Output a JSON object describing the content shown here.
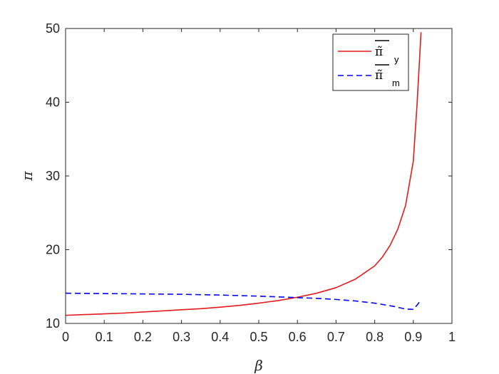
{
  "chart_data": {
    "type": "line",
    "xlabel": "β",
    "ylabel": "π",
    "xlim": [
      0,
      1
    ],
    "ylim": [
      10,
      50
    ],
    "xticks": [
      "0",
      "0.1",
      "0.2",
      "0.3",
      "0.4",
      "0.5",
      "0.6",
      "0.7",
      "0.8",
      "0.9",
      "1"
    ],
    "yticks": [
      "10",
      "20",
      "30",
      "40",
      "50"
    ],
    "grid": false,
    "legend_position": "top-right",
    "series": [
      {
        "name": "π̃",
        "legend_symbol": "π̃",
        "legend_sub": "y",
        "color": "#e41a1c",
        "style": "solid",
        "x": [
          0,
          0.05,
          0.1,
          0.15,
          0.2,
          0.25,
          0.3,
          0.35,
          0.4,
          0.45,
          0.5,
          0.55,
          0.6,
          0.65,
          0.7,
          0.75,
          0.8,
          0.82,
          0.84,
          0.86,
          0.88,
          0.9,
          0.91,
          0.92
        ],
        "y": [
          11.1,
          11.2,
          11.3,
          11.4,
          11.55,
          11.7,
          11.85,
          12.0,
          12.2,
          12.45,
          12.75,
          13.1,
          13.55,
          14.1,
          14.85,
          16.0,
          17.8,
          19.0,
          20.6,
          22.8,
          26.0,
          32.0,
          40.0,
          49.5
        ]
      },
      {
        "name": "π̃",
        "legend_symbol": "π̃",
        "legend_sub": "m",
        "color": "#0000ff",
        "style": "dashed",
        "x": [
          0,
          0.1,
          0.2,
          0.3,
          0.4,
          0.5,
          0.6,
          0.65,
          0.7,
          0.75,
          0.8,
          0.85,
          0.88,
          0.9,
          0.91,
          0.92
        ],
        "y": [
          14.1,
          14.05,
          14.0,
          13.95,
          13.85,
          13.7,
          13.5,
          13.4,
          13.25,
          13.05,
          12.75,
          12.3,
          11.95,
          11.9,
          12.5,
          13.2
        ]
      }
    ]
  }
}
